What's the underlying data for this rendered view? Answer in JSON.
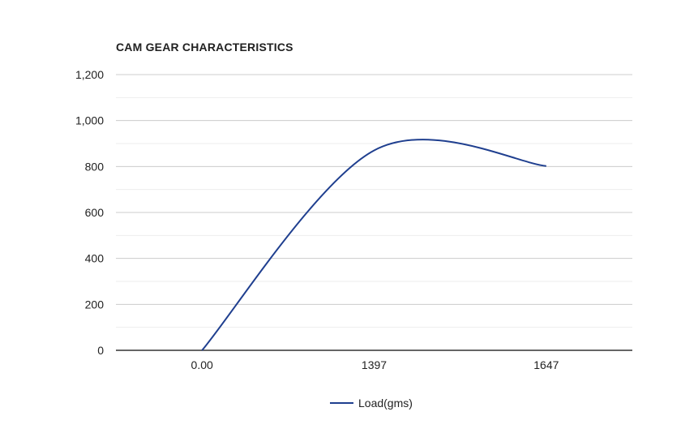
{
  "chart_data": {
    "type": "line",
    "title": "CAM GEAR CHARACTERISTICS",
    "xlabel": "",
    "ylabel": "",
    "categories": [
      "0.00",
      "1397",
      "1647"
    ],
    "ylim": [
      0,
      1200
    ],
    "yticks": [
      0,
      200,
      400,
      600,
      800,
      1000,
      1200
    ],
    "ytick_labels": [
      "0",
      "200",
      "400",
      "600",
      "800",
      "1,000",
      "1,200"
    ],
    "grid": true,
    "legend_position": "bottom",
    "series": [
      {
        "name": "Load(gms)",
        "values": [
          0,
          870,
          802
        ],
        "color": "#1f3f8f"
      }
    ]
  }
}
